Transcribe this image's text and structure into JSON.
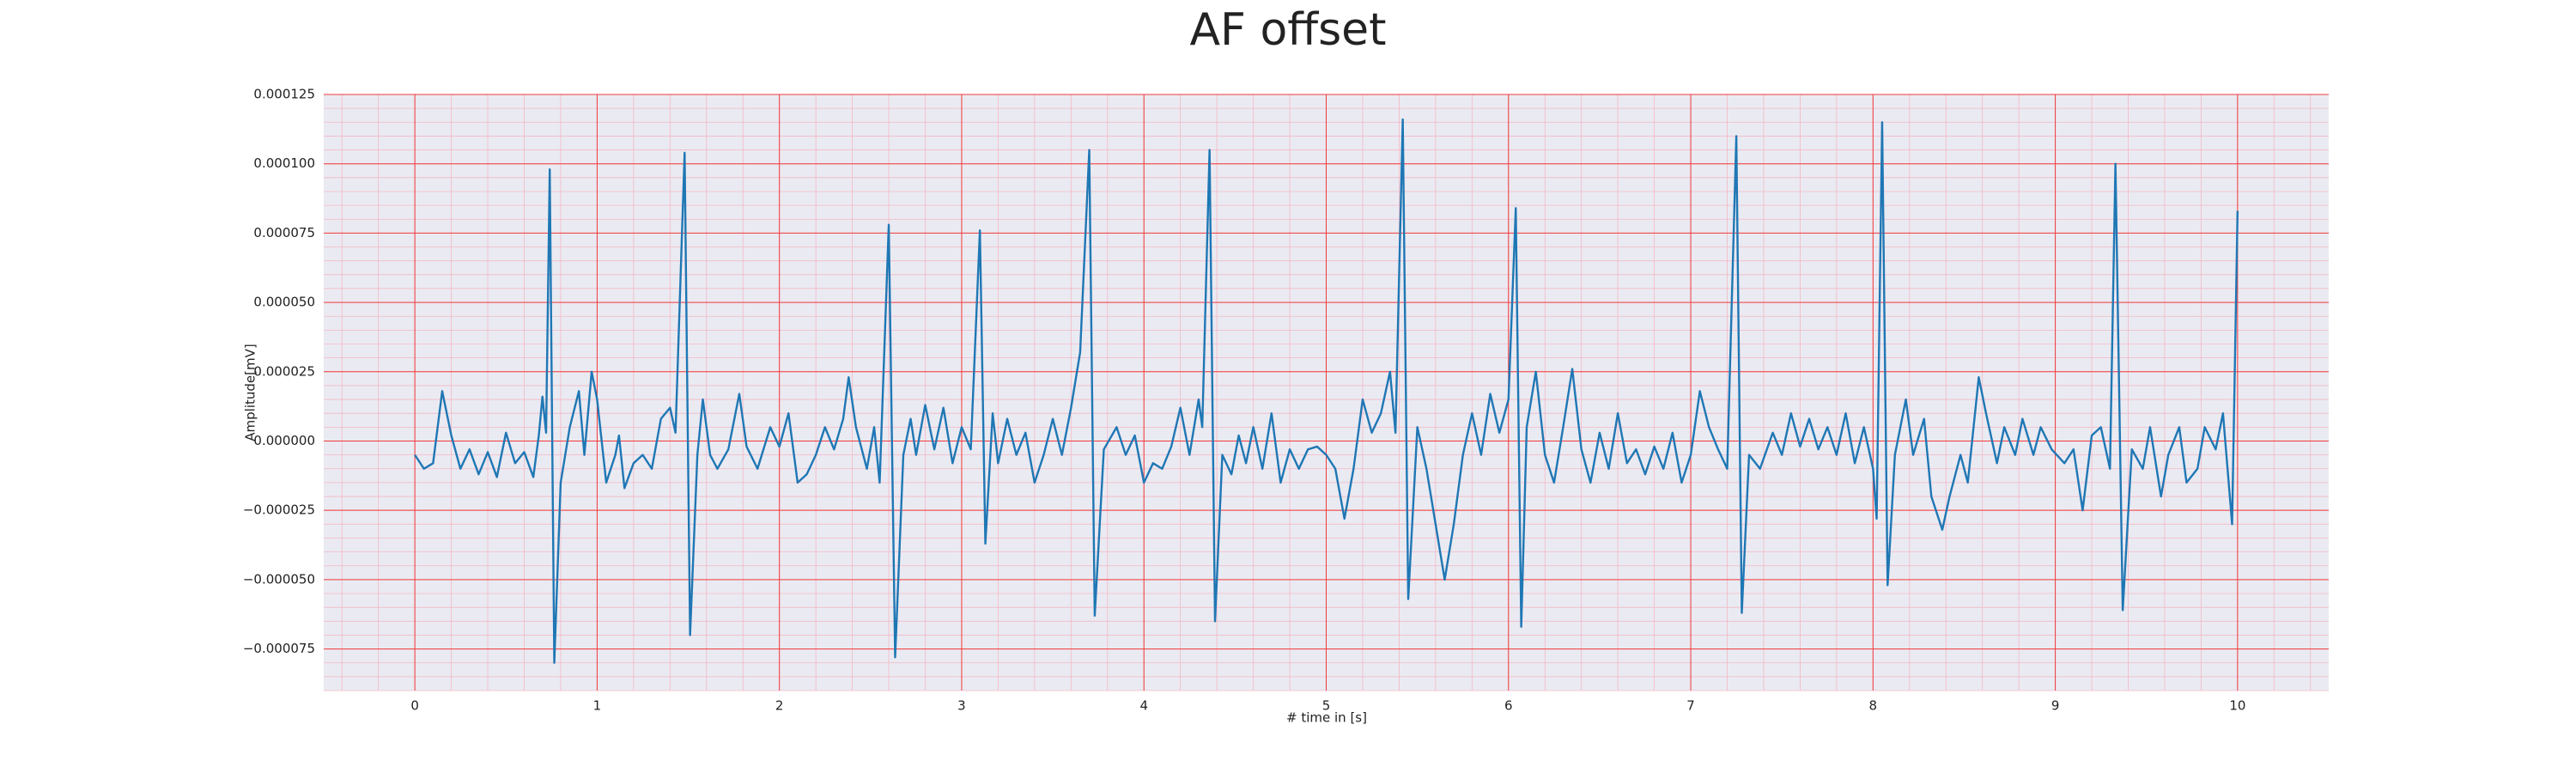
{
  "chart_data": {
    "type": "line",
    "title": "AF offset",
    "xlabel": "# time in [s]",
    "ylabel": "Amplitude[mV]",
    "color": "#1f77b4",
    "grid": true,
    "minor_grid": true,
    "xlim": [
      -0.5,
      10.5
    ],
    "xticks": [
      0,
      1,
      2,
      3,
      4,
      5,
      6,
      7,
      8,
      9,
      10
    ],
    "ylim": [
      -9e-05,
      0.000125
    ],
    "yticks": [
      {
        "value": -7.5e-05,
        "label": "−0.000075"
      },
      {
        "value": -5e-05,
        "label": "−0.000050"
      },
      {
        "value": -2.5e-05,
        "label": "−0.000025"
      },
      {
        "value": 0,
        "label": "0.000000"
      },
      {
        "value": 2.5e-05,
        "label": "0.000025"
      },
      {
        "value": 5e-05,
        "label": "0.000050"
      },
      {
        "value": 7.5e-05,
        "label": "0.000075"
      },
      {
        "value": 0.0001,
        "label": "0.000100"
      },
      {
        "value": 0.000125,
        "label": "0.000125"
      }
    ],
    "x": [
      0,
      0.05,
      0.1,
      0.15,
      0.2,
      0.25,
      0.3,
      0.35,
      0.4,
      0.45,
      0.5,
      0.55,
      0.6,
      0.65,
      0.68,
      0.7,
      0.72,
      0.74,
      0.765,
      0.8,
      0.85,
      0.9,
      0.93,
      0.97,
      1.0,
      1.05,
      1.1,
      1.12,
      1.15,
      1.2,
      1.25,
      1.3,
      1.35,
      1.4,
      1.43,
      1.48,
      1.51,
      1.55,
      1.58,
      1.62,
      1.66,
      1.72,
      1.78,
      1.82,
      1.88,
      1.95,
      2.0,
      2.05,
      2.1,
      2.15,
      2.2,
      2.25,
      2.3,
      2.35,
      2.38,
      2.42,
      2.48,
      2.52,
      2.55,
      2.6,
      2.635,
      2.68,
      2.72,
      2.75,
      2.8,
      2.85,
      2.9,
      2.95,
      3.0,
      3.05,
      3.1,
      3.13,
      3.17,
      3.2,
      3.25,
      3.3,
      3.35,
      3.4,
      3.45,
      3.5,
      3.55,
      3.6,
      3.65,
      3.7,
      3.73,
      3.78,
      3.85,
      3.9,
      3.95,
      4.0,
      4.05,
      4.1,
      4.15,
      4.2,
      4.25,
      4.3,
      4.32,
      4.36,
      4.39,
      4.43,
      4.48,
      4.52,
      4.56,
      4.6,
      4.65,
      4.7,
      4.75,
      4.8,
      4.85,
      4.9,
      4.95,
      5.0,
      5.05,
      5.1,
      5.15,
      5.2,
      5.25,
      5.3,
      5.35,
      5.38,
      5.42,
      5.45,
      5.5,
      5.55,
      5.6,
      5.65,
      5.7,
      5.75,
      5.8,
      5.85,
      5.9,
      5.95,
      6.0,
      6.04,
      6.07,
      6.1,
      6.15,
      6.2,
      6.25,
      6.3,
      6.35,
      6.4,
      6.45,
      6.5,
      6.55,
      6.6,
      6.65,
      6.7,
      6.75,
      6.8,
      6.85,
      6.9,
      6.95,
      7.0,
      7.05,
      7.1,
      7.15,
      7.2,
      7.25,
      7.28,
      7.32,
      7.38,
      7.45,
      7.5,
      7.55,
      7.6,
      7.65,
      7.7,
      7.75,
      7.8,
      7.85,
      7.9,
      7.95,
      8.0,
      8.02,
      8.05,
      8.08,
      8.12,
      8.18,
      8.22,
      8.28,
      8.32,
      8.38,
      8.42,
      8.48,
      8.52,
      8.58,
      8.62,
      8.68,
      8.72,
      8.78,
      8.82,
      8.88,
      8.92,
      8.98,
      9.05,
      9.1,
      9.15,
      9.2,
      9.25,
      9.3,
      9.33,
      9.37,
      9.42,
      9.48,
      9.52,
      9.58,
      9.62,
      9.68,
      9.72,
      9.78,
      9.82,
      9.88,
      9.92,
      9.97,
      10.0
    ],
    "values": [
      -5e-06,
      -1e-05,
      -8e-06,
      1.8e-05,
      2e-06,
      -1e-05,
      -3e-06,
      -1.2e-05,
      -4e-06,
      -1.3e-05,
      3e-06,
      -8e-06,
      -4e-06,
      -1.3e-05,
      2e-06,
      1.6e-05,
      3e-06,
      9.8e-05,
      -8e-05,
      -1.5e-05,
      5e-06,
      1.8e-05,
      -5e-06,
      2.5e-05,
      1.5e-05,
      -1.5e-05,
      -5e-06,
      2e-06,
      -1.7e-05,
      -8e-06,
      -5e-06,
      -1e-05,
      8e-06,
      1.2e-05,
      3e-06,
      0.000104,
      -7e-05,
      -5e-06,
      1.5e-05,
      -5e-06,
      -1e-05,
      -3e-06,
      1.7e-05,
      -2e-06,
      -1e-05,
      5e-06,
      -2e-06,
      1e-05,
      -1.5e-05,
      -1.2e-05,
      -5e-06,
      5e-06,
      -3e-06,
      8e-06,
      2.3e-05,
      5e-06,
      -1e-05,
      5e-06,
      -1.5e-05,
      7.8e-05,
      -7.8e-05,
      -5e-06,
      8e-06,
      -5e-06,
      1.3e-05,
      -3e-06,
      1.2e-05,
      -8e-06,
      5e-06,
      -3e-06,
      7.6e-05,
      -3.7e-05,
      1e-05,
      -8e-06,
      8e-06,
      -5e-06,
      3e-06,
      -1.5e-05,
      -5e-06,
      8e-06,
      -5e-06,
      1.2e-05,
      3.2e-05,
      0.000105,
      -6.3e-05,
      -3e-06,
      5e-06,
      -5e-06,
      2e-06,
      -1.5e-05,
      -8e-06,
      -1e-05,
      -2e-06,
      1.2e-05,
      -5e-06,
      1.5e-05,
      5e-06,
      0.000105,
      -6.5e-05,
      -5e-06,
      -1.2e-05,
      2e-06,
      -8e-06,
      5e-06,
      -1e-05,
      1e-05,
      -1.5e-05,
      -3e-06,
      -1e-05,
      -3e-06,
      -2e-06,
      -5e-06,
      -1e-05,
      -2.8e-05,
      -1e-05,
      1.5e-05,
      3e-06,
      1e-05,
      2.5e-05,
      3e-06,
      0.000116,
      -5.7e-05,
      5e-06,
      -1e-05,
      -3e-05,
      -5e-05,
      -3e-05,
      -5e-06,
      1e-05,
      -5e-06,
      1.7e-05,
      3e-06,
      1.5e-05,
      8.4e-05,
      -6.7e-05,
      5e-06,
      2.5e-05,
      -5e-06,
      -1.5e-05,
      5e-06,
      2.6e-05,
      -3e-06,
      -1.5e-05,
      3e-06,
      -1e-05,
      1e-05,
      -8e-06,
      -3e-06,
      -1.2e-05,
      -2e-06,
      -1e-05,
      3e-06,
      -1.5e-05,
      -5e-06,
      1.8e-05,
      5e-06,
      -3e-06,
      -1e-05,
      0.00011,
      -6.2e-05,
      -5e-06,
      -1e-05,
      3e-06,
      -5e-06,
      1e-05,
      -2e-06,
      8e-06,
      -3e-06,
      5e-06,
      -5e-06,
      1e-05,
      -8e-06,
      5e-06,
      -1e-05,
      -2.8e-05,
      0.000115,
      -5.2e-05,
      -5e-06,
      1.5e-05,
      -5e-06,
      8e-06,
      -2e-05,
      -3.2e-05,
      -2e-05,
      -5e-06,
      -1.5e-05,
      2.3e-05,
      1e-05,
      -8e-06,
      5e-06,
      -5e-06,
      8e-06,
      -5e-06,
      5e-06,
      -3e-06,
      -8e-06,
      -3e-06,
      -2.5e-05,
      2e-06,
      5e-06,
      -1e-05,
      0.0001,
      -6.1e-05,
      -3e-06,
      -1e-05,
      5e-06,
      -2e-05,
      -5e-06,
      5e-06,
      -1.5e-05,
      -1e-05,
      5e-06,
      -3e-06,
      1e-05,
      -3e-05,
      8.3e-05
    ]
  }
}
